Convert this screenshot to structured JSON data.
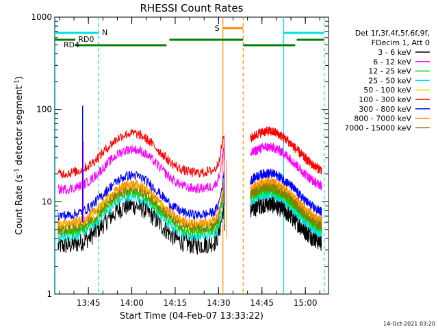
{
  "chart_data": {
    "type": "line",
    "title": "RHESSI Count Rates",
    "xlabel": "Start Time (04-Feb-07 13:33:22)",
    "ylabel_main": "Count Rate (s",
    "ylabel_sup1": "-1",
    "ylabel_mid": " detector segment",
    "ylabel_sup2": "-1",
    "ylabel_end": ")",
    "y_scale": "log",
    "ylim": [
      1,
      1000
    ],
    "xlim": [
      "13:33:22",
      "15:08:00"
    ],
    "x_ticks": [
      "13:45",
      "14:00",
      "14:15",
      "14:30",
      "14:45",
      "15:00"
    ],
    "y_ticks": [
      "1",
      "10",
      "100",
      "1000"
    ],
    "timestamp": "14-Oct-2021 03:20",
    "legend_header": [
      "Det 1f,3f,4f,5f,6f,9f,",
      "FDecim 1, Att 0"
    ],
    "series": [
      {
        "name": "3 - 6 keV",
        "color": "#000000",
        "base": 3.3
      },
      {
        "name": "6 - 12 keV",
        "color": "#ff00ff",
        "base": 13.5
      },
      {
        "name": "12 - 25 keV",
        "color": "#00dd00",
        "base": 4.6
      },
      {
        "name": "25 - 50 keV",
        "color": "#00e0e0",
        "base": 4.1
      },
      {
        "name": "50 - 100 keV",
        "color": "#ffd700",
        "base": 5.5
      },
      {
        "name": "100 - 300 keV",
        "color": "#ff0000",
        "base": 20.0
      },
      {
        "name": "300 - 800 keV",
        "color": "#0000ff",
        "base": 7.0
      },
      {
        "name": "800 - 7000 keV",
        "color": "#ff8c00",
        "base": 5.6
      },
      {
        "name": "7000 - 15000 keV",
        "color": "#808000",
        "base": 4.9
      }
    ],
    "flags": {
      "N_label": "N",
      "RD0_label": "RD0",
      "RD4_label": "RD4",
      "S_label": "S"
    },
    "gaps": [
      [
        "14:32:00",
        "14:38:30"
      ]
    ],
    "spike": {
      "time": "13:43:00",
      "peak": 110
    },
    "night_lines": [
      "13:33:30",
      "13:48:30",
      "14:52:30",
      "15:06:30"
    ],
    "saa_lines": [
      "14:31:30",
      "14:38:30"
    ]
  }
}
